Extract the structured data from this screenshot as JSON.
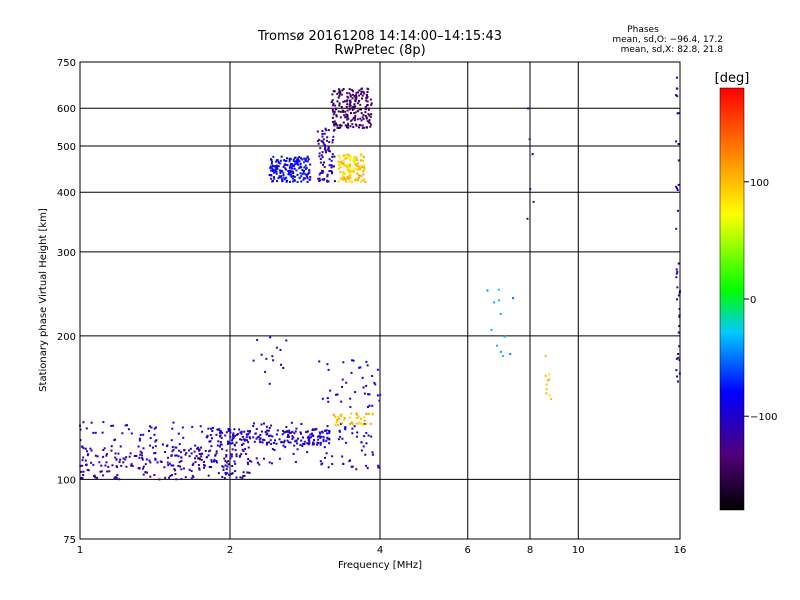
{
  "chart_data": {
    "type": "scatter",
    "title": "Tromsø 20161208 14:14:00–14:15:43",
    "subtitle": "RwPretec (8p)",
    "xlabel": "Frequency [MHz]",
    "ylabel": "Stationary phase Virtual Height [km]",
    "xscale": "log",
    "yscale": "log",
    "xlim": [
      1,
      16
    ],
    "ylim": [
      75,
      750
    ],
    "x_ticks": [
      1,
      2,
      4,
      6,
      8,
      10,
      16
    ],
    "x_tick_labels": [
      "1",
      "2",
      "4",
      "6",
      "8",
      "10",
      "16"
    ],
    "y_ticks": [
      75,
      100,
      200,
      300,
      400,
      500,
      600,
      750
    ],
    "y_tick_labels": [
      "75",
      "100",
      "200",
      "300",
      "400",
      "500",
      "600",
      "750"
    ],
    "grid": true,
    "phase_box": {
      "title": "Phases",
      "line1": "mean, sd,O: −96.4, 17.2",
      "line2": "mean, sd,X:  82.8, 21.8"
    },
    "colorbar": {
      "label": "[deg]",
      "range": [
        -180,
        180
      ],
      "ticks": [
        100,
        0,
        -100
      ],
      "tick_labels": [
        "100",
        "0",
        "−100"
      ]
    },
    "point_groups": [
      {
        "x": [
          1.0,
          4.0
        ],
        "y": [
          105,
          132
        ],
        "phase": -100,
        "n": 220
      },
      {
        "x": [
          1.0,
          2.2
        ],
        "y": [
          100,
          118
        ],
        "phase": -110,
        "n": 220
      },
      {
        "x": [
          1.8,
          3.2
        ],
        "y": [
          118,
          128
        ],
        "phase": -100,
        "n": 170
      },
      {
        "x": [
          2.2,
          2.6
        ],
        "y": [
          150,
          200
        ],
        "phase": -110,
        "n": 14
      },
      {
        "x": [
          3.0,
          4.1
        ],
        "y": [
          140,
          180
        ],
        "phase": -95,
        "n": 40
      },
      {
        "x": [
          3.2,
          3.9
        ],
        "y": [
          130,
          138
        ],
        "phase": 100,
        "n": 40
      },
      {
        "x": [
          2.4,
          2.9
        ],
        "y": [
          420,
          475
        ],
        "phase": -85,
        "n": 190
      },
      {
        "x": [
          3.0,
          3.25
        ],
        "y": [
          420,
          545
        ],
        "phase": -115,
        "n": 80
      },
      {
        "x": [
          3.2,
          3.85
        ],
        "y": [
          545,
          660
        ],
        "phase": -140,
        "n": 200
      },
      {
        "x": [
          3.3,
          3.75
        ],
        "y": [
          420,
          480
        ],
        "phase": 95,
        "n": 130
      },
      {
        "x": [
          7.9,
          8.15
        ],
        "y": [
          330,
          600
        ],
        "phase": -120,
        "n": 6
      },
      {
        "x": [
          6.4,
          7.4
        ],
        "y": [
          165,
          250
        ],
        "phase": -40,
        "n": 12
      },
      {
        "x": [
          15.7,
          16.0
        ],
        "y": [
          160,
          720
        ],
        "phase": -100,
        "n": 40
      },
      {
        "x": [
          8.6,
          8.9
        ],
        "y": [
          140,
          190
        ],
        "phase": 100,
        "n": 10
      }
    ]
  }
}
